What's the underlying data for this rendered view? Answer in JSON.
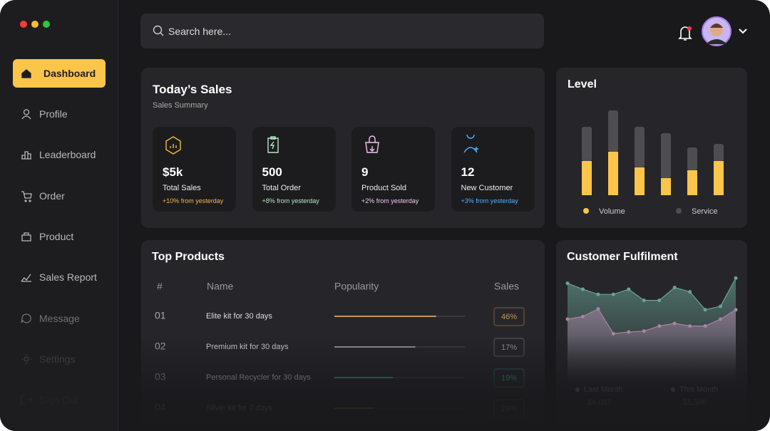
{
  "sidebar": {
    "menu": [
      "Dashboard",
      "Profile",
      "Leaderboard",
      "Order",
      "Product",
      "Sales Report",
      "Message",
      "Settings",
      "Sign Out"
    ]
  },
  "search": {
    "placeholder": "Search here..."
  },
  "todays_sales": {
    "title": "Today’s Sales",
    "subtitle": "Sales Summary",
    "cards": [
      {
        "value": "$5k",
        "label": "Total Sales",
        "change": "+10% from yesterday",
        "color": "#f5b942"
      },
      {
        "value": "500",
        "label": "Total Order",
        "change": "+8% from yesterday",
        "color": "#b9e6c6"
      },
      {
        "value": "9",
        "label": "Product Sold",
        "change": "+2% from yesterday",
        "color": "#f1c6ec"
      },
      {
        "value": "12",
        "label": "New Customer",
        "change": "+3% from yesterday",
        "color": "#4fb3ff"
      }
    ]
  },
  "level": {
    "type": "bar",
    "title": "Level",
    "stacked": true,
    "categories": [
      null,
      null,
      null,
      null,
      null,
      null
    ],
    "ylim": [
      0,
      120
    ],
    "series": [
      {
        "name": "Volume",
        "color": "#fbc54a",
        "values": [
          48,
          61,
          39,
          24,
          35,
          48
        ]
      },
      {
        "name": "Service",
        "color": "#4d4d52",
        "values": [
          48,
          58,
          57,
          63,
          32,
          24
        ]
      }
    ]
  },
  "top_products": {
    "title": "Top Products",
    "headers": [
      "#",
      "Name",
      "Popularity",
      "Sales"
    ],
    "popularity_max": 100,
    "rows": [
      {
        "id": "01",
        "name": "Elite kit for 30 days",
        "popularity": 78,
        "sales": "46%",
        "color": "#c4965a"
      },
      {
        "id": "02",
        "name": "Premium kit for 30 days",
        "popularity": 62,
        "sales": "17%",
        "color": "#9a9a9e"
      },
      {
        "id": "03",
        "name": "Personal Recycler for 30 days",
        "popularity": 45,
        "sales": "19%",
        "color": "#4fa8a0"
      },
      {
        "id": "04",
        "name": "Silver kit for 7 days",
        "popularity": 30,
        "sales": "29%",
        "color": "#c4965a"
      }
    ]
  },
  "customer_fulfilment": {
    "type": "area",
    "title": "Customer Fulfilment",
    "categories": [
      null,
      null,
      null,
      null,
      null,
      null,
      null,
      null,
      null,
      null,
      null,
      null
    ],
    "ylim": [
      0,
      100
    ],
    "series": [
      {
        "name": "Last Month",
        "total": "$4,087",
        "color": "#6aa396",
        "values": [
          87,
          80,
          74,
          74,
          80,
          67,
          67,
          82,
          77,
          56,
          60,
          93
        ]
      },
      {
        "name": "This Month",
        "total": "$5,506",
        "color": "#a883a3",
        "values": [
          45,
          48,
          57,
          28,
          30,
          31,
          37,
          40,
          37,
          37,
          45,
          56
        ]
      }
    ]
  }
}
